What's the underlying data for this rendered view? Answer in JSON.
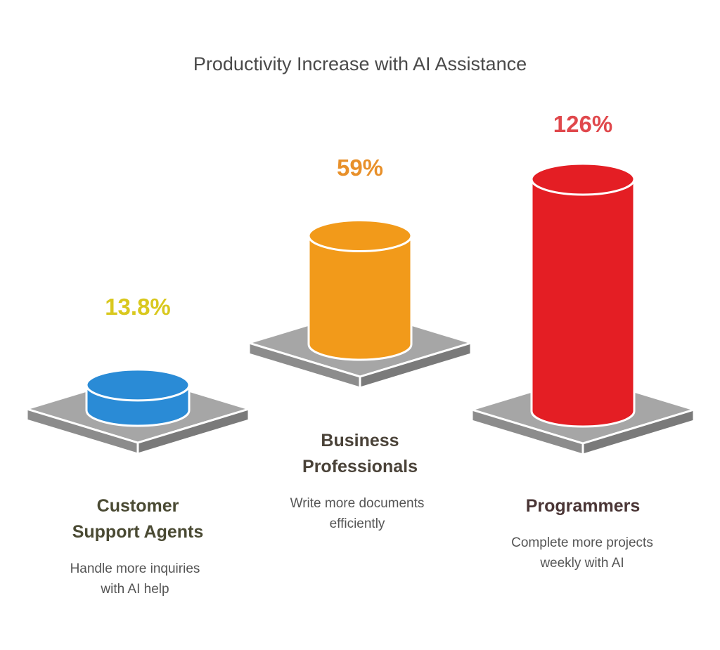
{
  "chart_data": {
    "type": "bar",
    "title": "Productivity Increase with AI Assistance",
    "categories": [
      {
        "name": "Customer Support Agents",
        "line1": "Customer",
        "line2": "Support Agents",
        "description_line1": "Handle more inquiries",
        "description_line2": "with AI help",
        "label": "13.8%",
        "value": 13.8,
        "color": "#2a8bd6",
        "label_color": "#d9c81e",
        "name_color": "#4a4a33"
      },
      {
        "name": "Business Professionals",
        "line1": "Business",
        "line2": "Professionals",
        "description_line1": "Write more documents",
        "description_line2": "efficiently",
        "label": "59%",
        "value": 59,
        "color": "#f29a1a",
        "label_color": "#e8902a",
        "name_color": "#4a4238"
      },
      {
        "name": "Programmers",
        "line1": "Programmers",
        "line2": "",
        "description_line1": "Complete more projects",
        "description_line2": "weekly with AI",
        "label": "126%",
        "value": 126,
        "color": "#e41e24",
        "label_color": "#e0484c",
        "name_color": "#4a3535"
      }
    ],
    "unit": "%"
  }
}
